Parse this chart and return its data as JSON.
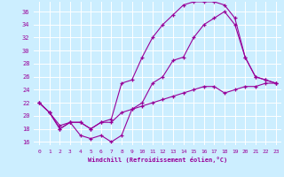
{
  "xlabel": "Windchill (Refroidissement éolien,°C)",
  "background_color": "#cceeff",
  "line_color": "#990099",
  "xlim": [
    -0.5,
    23.5
  ],
  "ylim": [
    15.5,
    37.5
  ],
  "yticks": [
    16,
    18,
    20,
    22,
    24,
    26,
    28,
    30,
    32,
    34,
    36
  ],
  "xticks": [
    0,
    1,
    2,
    3,
    4,
    5,
    6,
    7,
    8,
    9,
    10,
    11,
    12,
    13,
    14,
    15,
    16,
    17,
    18,
    19,
    20,
    21,
    22,
    23
  ],
  "series1_x": [
    0,
    1,
    2,
    3,
    4,
    5,
    6,
    7,
    8,
    9,
    10,
    11,
    12,
    13,
    14,
    15,
    16,
    17,
    18,
    19,
    20,
    21,
    22,
    23
  ],
  "series1_y": [
    22,
    20.5,
    18,
    19,
    19,
    18,
    19,
    19,
    20.5,
    21,
    21.5,
    22,
    22.5,
    23,
    23.5,
    24,
    24.5,
    24.5,
    23.5,
    24,
    24.5,
    24.5,
    25,
    25
  ],
  "series2_x": [
    0,
    1,
    2,
    3,
    4,
    5,
    6,
    7,
    8,
    9,
    10,
    11,
    12,
    13,
    14,
    15,
    16,
    17,
    18,
    19,
    20,
    21,
    22,
    23
  ],
  "series2_y": [
    22,
    20.5,
    18,
    19,
    17,
    16.5,
    17,
    16,
    17,
    21,
    22,
    25,
    26,
    28.5,
    29,
    32,
    34,
    35,
    36,
    34,
    29,
    26,
    25.5,
    25
  ],
  "series3_x": [
    0,
    1,
    2,
    3,
    4,
    5,
    6,
    7,
    8,
    9,
    10,
    11,
    12,
    13,
    14,
    15,
    16,
    17,
    18,
    19,
    20,
    21,
    22,
    23
  ],
  "series3_y": [
    22,
    20.5,
    18.5,
    19,
    19,
    18,
    19,
    19.5,
    25,
    25.5,
    29,
    32,
    34,
    35.5,
    37,
    37.5,
    37.5,
    37.5,
    37,
    35,
    29,
    26,
    25.5,
    25
  ]
}
